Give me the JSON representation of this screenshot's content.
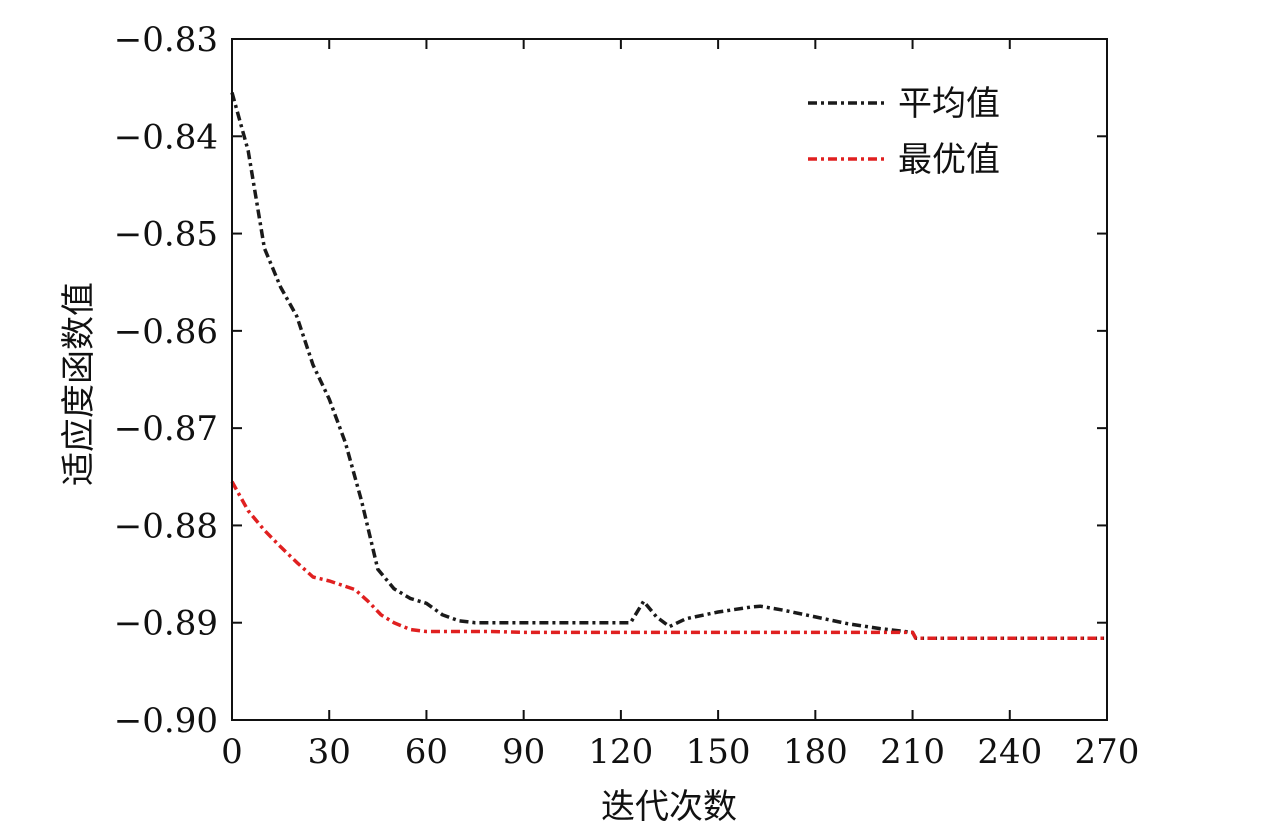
{
  "chart_data": {
    "type": "line",
    "title": "",
    "xlabel": "迭代次数",
    "ylabel": "适应度函数值",
    "xlim": [
      0,
      270
    ],
    "ylim": [
      -0.9,
      -0.83
    ],
    "x_ticks": [
      0,
      30,
      60,
      90,
      120,
      150,
      180,
      210,
      240,
      270
    ],
    "x_tick_labels": [
      "0",
      "30",
      "60",
      "90",
      "120",
      "150",
      "180",
      "210",
      "240",
      "270"
    ],
    "y_ticks": [
      -0.83,
      -0.84,
      -0.85,
      -0.86,
      -0.87,
      -0.88,
      -0.89,
      -0.9
    ],
    "y_tick_labels": [
      "−0.83",
      "−0.84",
      "−0.85",
      "−0.86",
      "−0.87",
      "−0.88",
      "−0.89",
      "−0.90"
    ],
    "grid": false,
    "legend_position": "top-right",
    "series": [
      {
        "name": "平均值",
        "color": "#1a1a1a",
        "dash": "dash-dot",
        "x": [
          0,
          5,
          10,
          15,
          20,
          25,
          30,
          35,
          40,
          45,
          50,
          55,
          60,
          65,
          70,
          75,
          80,
          90,
          100,
          110,
          120,
          123,
          127,
          131,
          135,
          140,
          150,
          160,
          163,
          170,
          180,
          190,
          200,
          210,
          211,
          240,
          270
        ],
        "y": [
          -0.8355,
          -0.8415,
          -0.8515,
          -0.8555,
          -0.8585,
          -0.8635,
          -0.867,
          -0.8715,
          -0.8775,
          -0.8845,
          -0.8865,
          -0.8875,
          -0.888,
          -0.8892,
          -0.8898,
          -0.89,
          -0.89,
          -0.89,
          -0.89,
          -0.89,
          -0.89,
          -0.89,
          -0.8878,
          -0.8894,
          -0.8904,
          -0.8896,
          -0.8889,
          -0.8884,
          -0.8883,
          -0.8887,
          -0.8894,
          -0.8901,
          -0.8906,
          -0.891,
          -0.8916,
          -0.8916,
          -0.8916
        ]
      },
      {
        "name": "最优值",
        "color": "#e02020",
        "dash": "dash-dot",
        "x": [
          0,
          5,
          10,
          15,
          20,
          25,
          30,
          38,
          42,
          46,
          50,
          55,
          60,
          70,
          80,
          90,
          120,
          150,
          180,
          200,
          210,
          211,
          240,
          270
        ],
        "y": [
          -0.8755,
          -0.8785,
          -0.8805,
          -0.8822,
          -0.8838,
          -0.8853,
          -0.8857,
          -0.8866,
          -0.8878,
          -0.8892,
          -0.89,
          -0.8907,
          -0.8909,
          -0.8909,
          -0.8909,
          -0.891,
          -0.891,
          -0.891,
          -0.891,
          -0.891,
          -0.891,
          -0.8916,
          -0.8916,
          -0.8916
        ]
      }
    ]
  }
}
